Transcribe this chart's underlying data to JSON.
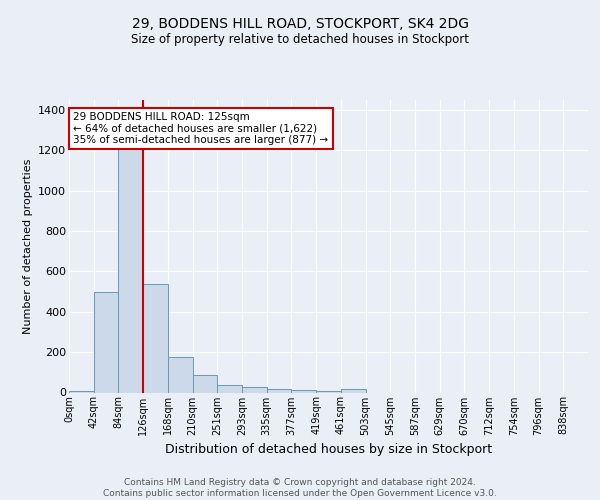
{
  "title1": "29, BODDENS HILL ROAD, STOCKPORT, SK4 2DG",
  "title2": "Size of property relative to detached houses in Stockport",
  "xlabel": "Distribution of detached houses by size in Stockport",
  "ylabel": "Number of detached properties",
  "bin_labels": [
    "0sqm",
    "42sqm",
    "84sqm",
    "126sqm",
    "168sqm",
    "210sqm",
    "251sqm",
    "293sqm",
    "335sqm",
    "377sqm",
    "419sqm",
    "461sqm",
    "503sqm",
    "545sqm",
    "587sqm",
    "629sqm",
    "670sqm",
    "712sqm",
    "754sqm",
    "796sqm",
    "838sqm"
  ],
  "bar_heights": [
    5,
    500,
    1350,
    540,
    175,
    85,
    35,
    25,
    15,
    10,
    8,
    15,
    0,
    0,
    0,
    0,
    0,
    0,
    0,
    0,
    0
  ],
  "bar_color": "#ccd9e8",
  "bar_edge_color": "#6699bb",
  "bar_edge_width": 0.7,
  "red_line_color": "#cc0000",
  "annotation_text": "29 BODDENS HILL ROAD: 125sqm\n← 64% of detached houses are smaller (1,622)\n35% of semi-detached houses are larger (877) →",
  "annotation_box_color": "white",
  "annotation_box_edge_color": "#cc0000",
  "ylim": [
    0,
    1450
  ],
  "yticks": [
    0,
    200,
    400,
    600,
    800,
    1000,
    1200,
    1400
  ],
  "footer": "Contains HM Land Registry data © Crown copyright and database right 2024.\nContains public sector information licensed under the Open Government Licence v3.0.",
  "bg_color": "#eaeff7",
  "plot_bg_color": "#eaeff7",
  "grid_color": "white",
  "figsize": [
    6.0,
    5.0
  ],
  "dpi": 100
}
